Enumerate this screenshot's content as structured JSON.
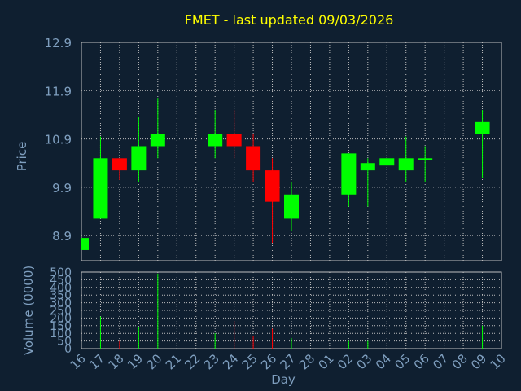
{
  "title": "FMET - last updated 09/03/2026",
  "colors": {
    "background": "#0f1f30",
    "title": "#ffff00",
    "axis_text": "#7f9fbf",
    "grid": "#bfbfbf",
    "up": "#00ff00",
    "down": "#ff0000"
  },
  "chart_data": [
    {
      "type": "candlestick",
      "ylabel": "Price",
      "ylim": [
        8.38,
        12.9
      ],
      "yticks": [
        "12.9",
        "11.9",
        "10.9",
        "9.9",
        "8.9"
      ],
      "grid": true,
      "x": [
        "16",
        "17",
        "18",
        "19",
        "20",
        "21",
        "22",
        "23",
        "24",
        "25",
        "26",
        "27",
        "28",
        "01",
        "02",
        "03",
        "04",
        "05",
        "06",
        "07",
        "08",
        "09",
        "10"
      ],
      "ohlc": [
        {
          "day": "16",
          "open": 8.6,
          "high": 8.85,
          "low": 8.6,
          "close": 8.85
        },
        {
          "day": "17",
          "open": 9.25,
          "high": 10.95,
          "low": 9.25,
          "close": 10.5
        },
        {
          "day": "18",
          "open": 10.5,
          "high": 10.5,
          "low": 10.05,
          "close": 10.25
        },
        {
          "day": "19",
          "open": 10.25,
          "high": 11.35,
          "low": 10.0,
          "close": 10.75
        },
        {
          "day": "20",
          "open": 10.75,
          "high": 11.75,
          "low": 10.5,
          "close": 11.0
        },
        {
          "day": "23",
          "open": 10.75,
          "high": 11.5,
          "low": 10.5,
          "close": 11.0
        },
        {
          "day": "24",
          "open": 11.0,
          "high": 11.5,
          "low": 10.5,
          "close": 10.75
        },
        {
          "day": "25",
          "open": 10.75,
          "high": 11.0,
          "low": 10.0,
          "close": 10.25
        },
        {
          "day": "26",
          "open": 10.25,
          "high": 10.5,
          "low": 8.75,
          "close": 9.6
        },
        {
          "day": "27",
          "open": 9.25,
          "high": 10.0,
          "low": 9.0,
          "close": 9.75
        },
        {
          "day": "02",
          "open": 9.75,
          "high": 10.6,
          "low": 9.5,
          "close": 10.6
        },
        {
          "day": "03",
          "open": 10.25,
          "high": 10.5,
          "low": 9.5,
          "close": 10.4
        },
        {
          "day": "04",
          "open": 10.35,
          "high": 10.5,
          "low": 10.35,
          "close": 10.5
        },
        {
          "day": "05",
          "open": 10.25,
          "high": 10.95,
          "low": 10.0,
          "close": 10.5
        },
        {
          "day": "06",
          "open": 10.5,
          "high": 10.75,
          "low": 10.0,
          "close": 10.5
        },
        {
          "day": "09",
          "open": 11.0,
          "high": 11.5,
          "low": 10.1,
          "close": 11.25
        }
      ]
    },
    {
      "type": "bar",
      "ylabel": "Volume (0000)",
      "xlabel": "Day",
      "ylim": [
        0,
        500
      ],
      "yticks": [
        "500",
        "450",
        "400",
        "350",
        "300",
        "250",
        "200",
        "150",
        "100",
        "50",
        "0"
      ],
      "grid": true,
      "x": [
        "16",
        "17",
        "18",
        "19",
        "20",
        "21",
        "22",
        "23",
        "24",
        "25",
        "26",
        "27",
        "28",
        "01",
        "02",
        "03",
        "04",
        "05",
        "06",
        "07",
        "08",
        "09",
        "10"
      ],
      "values": [
        {
          "day": "17",
          "volume": 210,
          "direction": "up"
        },
        {
          "day": "18",
          "volume": 50,
          "direction": "down"
        },
        {
          "day": "19",
          "volume": 140,
          "direction": "up"
        },
        {
          "day": "20",
          "volume": 490,
          "direction": "up"
        },
        {
          "day": "23",
          "volume": 100,
          "direction": "up"
        },
        {
          "day": "24",
          "volume": 180,
          "direction": "down"
        },
        {
          "day": "25",
          "volume": 80,
          "direction": "down"
        },
        {
          "day": "26",
          "volume": 130,
          "direction": "down"
        },
        {
          "day": "27",
          "volume": 70,
          "direction": "up"
        },
        {
          "day": "02",
          "volume": 50,
          "direction": "up"
        },
        {
          "day": "03",
          "volume": 50,
          "direction": "up"
        },
        {
          "day": "09",
          "volume": 150,
          "direction": "up"
        }
      ]
    }
  ]
}
